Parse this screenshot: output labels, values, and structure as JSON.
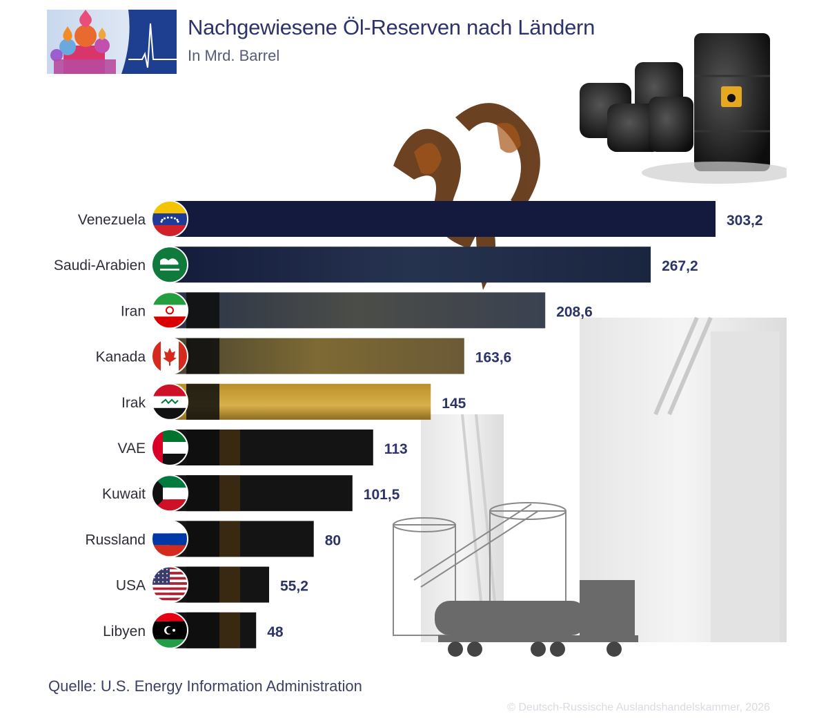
{
  "header": {
    "title": "Nachgewiesene Öl-Reserven nach Ländern",
    "subtitle": "In Mrd. Barrel"
  },
  "footer": {
    "source": "Quelle: U.S. Energy Information Administration",
    "copyright": "© Deutsch-Russische Auslandshandelskammer, 2026"
  },
  "colors": {
    "title": "#2c3369",
    "value_label": "#2c3369",
    "bar_top": "#131a3e",
    "bar_dark": "#141414",
    "bar_sunset": "#c9a43c",
    "logo_blue": "#1e3f8f"
  },
  "chart_data": {
    "type": "bar",
    "orientation": "horizontal",
    "categories": [
      "Venezuela",
      "Saudi-Arabien",
      "Iran",
      "Kanada",
      "Irak",
      "VAE",
      "Kuwait",
      "Russland",
      "USA",
      "Libyen"
    ],
    "values": [
      303.2,
      267.2,
      208.6,
      163.6,
      145,
      113,
      101.5,
      80,
      55.2,
      48
    ],
    "value_labels": [
      "303,2",
      "267,2",
      "208,6",
      "163,6",
      "145",
      "113",
      "101,5",
      "80",
      "55,2",
      "48"
    ],
    "flag_icons": [
      "flag-venezuela-icon",
      "flag-saudi-arabia-icon",
      "flag-iran-icon",
      "flag-canada-icon",
      "flag-iraq-icon",
      "flag-uae-icon",
      "flag-kuwait-icon",
      "flag-russia-icon",
      "flag-usa-icon",
      "flag-libya-icon"
    ],
    "xlim": [
      0,
      303.2
    ],
    "grid": false,
    "legend": "none"
  }
}
